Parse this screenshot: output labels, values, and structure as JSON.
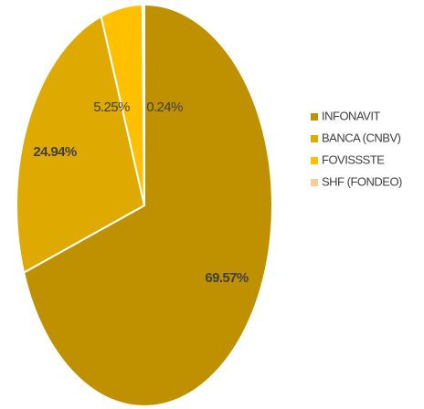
{
  "chart_data": {
    "type": "pie",
    "categories": [
      "INFONAVIT",
      "BANCA (CNBV)",
      "FOVISSSTE",
      "SHF (FONDEO)"
    ],
    "values": [
      69.57,
      24.94,
      5.25,
      0.24
    ],
    "value_labels": [
      "69.57%",
      "24.94%",
      "5.25%",
      "0.24%"
    ],
    "colors": [
      "#bf9000",
      "#dea900",
      "#ffc000",
      "#ffcc99"
    ],
    "legend": "right"
  }
}
